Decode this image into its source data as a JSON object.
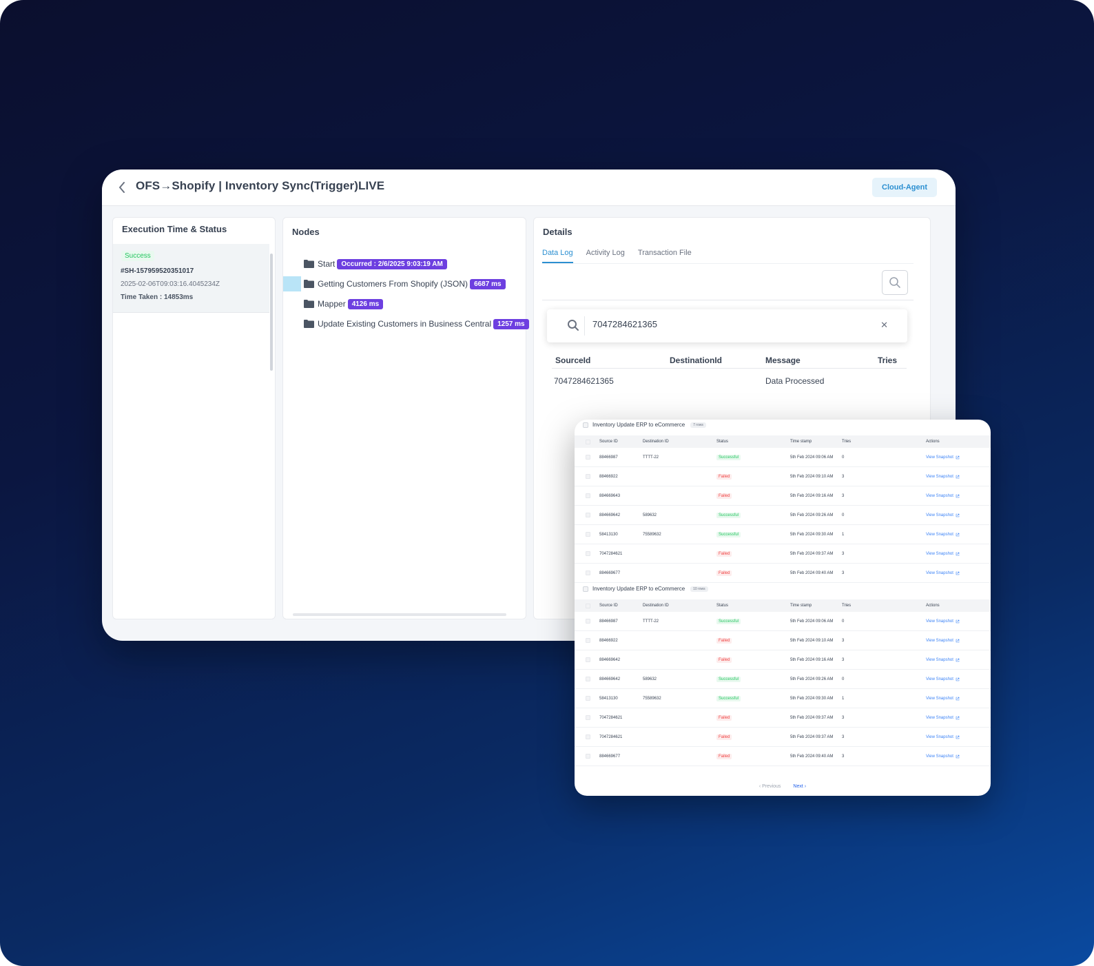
{
  "header": {
    "title": "OFS→Shopify | Inventory Sync(Trigger)LIVE",
    "agent_label": "Cloud-Agent"
  },
  "execution": {
    "title": "Execution Time & Status",
    "status": "Success",
    "id": "#SH-157959520351017",
    "timestamp": "2025-02-06T09:03:16.4045234Z",
    "time_taken": "Time Taken : 14853ms"
  },
  "nodes": {
    "title": "Nodes",
    "items": [
      {
        "label": "Start",
        "pill": "Occurred : 2/6/2025 9:03:19 AM"
      },
      {
        "label": "Getting Customers From Shopify (JSON)",
        "pill": "6687 ms"
      },
      {
        "label": "Mapper",
        "pill": "4126 ms"
      },
      {
        "label": "Update Existing Customers in Business Central",
        "pill": "1257 ms"
      }
    ]
  },
  "details": {
    "title": "Details",
    "tabs": [
      "Data Log",
      "Activity Log",
      "Transaction File"
    ],
    "search_value": "7047284621365",
    "columns": [
      "SourceId",
      "DestinationId",
      "Message",
      "Tries"
    ],
    "row": {
      "source_id": "7047284621365",
      "destination_id": "",
      "message": "Data Processed",
      "tries": ""
    }
  },
  "overlay": {
    "columns": [
      "Source ID",
      "Destination ID",
      "Status",
      "Time stamp",
      "Tries",
      "Actions"
    ],
    "sections": [
      {
        "title": "Inventory Update ERP to eCommerce",
        "count": "7 rows",
        "rows": [
          {
            "source": "88466987",
            "dest": "TTTT-22",
            "status": "Successful",
            "time": "5th Feb 2024 09:06 AM",
            "tries": "0",
            "action": "View Snapshot"
          },
          {
            "source": "88466922",
            "dest": "",
            "status": "Failed",
            "time": "5th Feb 2024 09:10 AM",
            "tries": "3",
            "action": "View Snapshot"
          },
          {
            "source": "884669643",
            "dest": "",
            "status": "Failed",
            "time": "5th Feb 2024 09:16 AM",
            "tries": "3",
            "action": "View Snapshot"
          },
          {
            "source": "884669642",
            "dest": "589632",
            "status": "Successful",
            "time": "5th Feb 2024 09:26 AM",
            "tries": "0",
            "action": "View Snapshot"
          },
          {
            "source": "58413130",
            "dest": "75589632",
            "status": "Successful",
            "time": "5th Feb 2024 09:30 AM",
            "tries": "1",
            "action": "View Snapshot"
          },
          {
            "source": "7047284621",
            "dest": "",
            "status": "Failed",
            "time": "5th Feb 2024 09:37 AM",
            "tries": "3",
            "action": "View Snapshot"
          },
          {
            "source": "884669677",
            "dest": "",
            "status": "Failed",
            "time": "5th Feb 2024 09:40 AM",
            "tries": "3",
            "action": "View Snapshot"
          }
        ]
      },
      {
        "title": "Inventory Update ERP to eCommerce",
        "count": "10 rows",
        "rows": [
          {
            "source": "88466987",
            "dest": "TTTT-22",
            "status": "Successful",
            "time": "5th Feb 2024 09:06 AM",
            "tries": "0",
            "action": "View Snapshot"
          },
          {
            "source": "88466922",
            "dest": "",
            "status": "Failed",
            "time": "5th Feb 2024 09:10 AM",
            "tries": "3",
            "action": "View Snapshot"
          },
          {
            "source": "884669642",
            "dest": "",
            "status": "Failed",
            "time": "5th Feb 2024 09:16 AM",
            "tries": "3",
            "action": "View Snapshot"
          },
          {
            "source": "884669642",
            "dest": "589632",
            "status": "Successful",
            "time": "5th Feb 2024 09:26 AM",
            "tries": "0",
            "action": "View Snapshot"
          },
          {
            "source": "58413130",
            "dest": "75589632",
            "status": "Successful",
            "time": "5th Feb 2024 09:30 AM",
            "tries": "1",
            "action": "View Snapshot"
          },
          {
            "source": "7047284621",
            "dest": "",
            "status": "Failed",
            "time": "5th Feb 2024 09:37 AM",
            "tries": "3",
            "action": "View Snapshot"
          },
          {
            "source": "7047284621",
            "dest": "",
            "status": "Failed",
            "time": "5th Feb 2024 09:37 AM",
            "tries": "3",
            "action": "View Snapshot"
          },
          {
            "source": "884669677",
            "dest": "",
            "status": "Failed",
            "time": "5th Feb 2024 09:40 AM",
            "tries": "3",
            "action": "View Snapshot"
          }
        ]
      }
    ],
    "pager": {
      "previous": "Previous",
      "next": "Next"
    }
  },
  "colors": {
    "accent": "#2b8fd1",
    "pill": "#6d3fe0",
    "success": "#22c55e",
    "failed": "#ef4444"
  }
}
